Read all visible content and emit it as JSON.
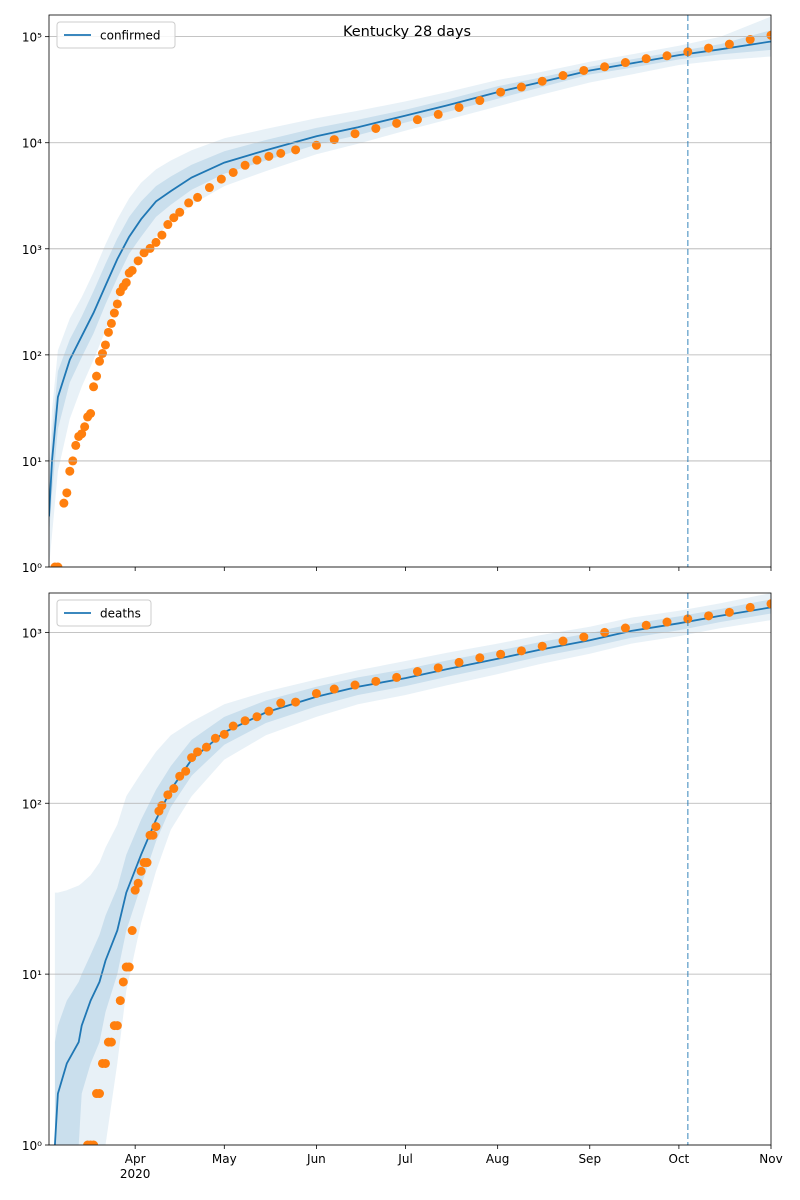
{
  "chart_data": [
    {
      "type": "line",
      "title": "Kentucky 28 days",
      "log_y": true,
      "grid": "y",
      "legend": "upper left",
      "xlim": [
        "2020-03-03",
        "2020-11-01"
      ],
      "xticks": [
        {
          "value": "2020-04-01",
          "label": "Apr"
        },
        {
          "value": "2020-05-01",
          "label": "May"
        },
        {
          "value": "2020-06-01",
          "label": "Jun"
        },
        {
          "value": "2020-07-01",
          "label": "Jul"
        },
        {
          "value": "2020-08-01",
          "label": "Aug"
        },
        {
          "value": "2020-09-01",
          "label": "Sep"
        },
        {
          "value": "2020-10-01",
          "label": "Oct"
        },
        {
          "value": "2020-11-01",
          "label": "Nov"
        }
      ],
      "ylim": [
        1,
        160000
      ],
      "yticks": [
        {
          "value": 1,
          "label": "10⁰"
        },
        {
          "value": 10,
          "label": "10¹"
        },
        {
          "value": 100,
          "label": "10²"
        },
        {
          "value": 1000,
          "label": "10³"
        },
        {
          "value": 10000,
          "label": "10⁴"
        },
        {
          "value": 100000,
          "label": "10⁵"
        }
      ],
      "vline": {
        "x": "2020-10-04",
        "color": "#1f77b4"
      },
      "series": [
        {
          "name": "confirmed",
          "color": "#1f77b4",
          "x": [
            "2020-03-03",
            "2020-03-04",
            "2020-03-06",
            "2020-03-10",
            "2020-03-14",
            "2020-03-18",
            "2020-03-22",
            "2020-03-26",
            "2020-03-30",
            "2020-04-03",
            "2020-04-08",
            "2020-04-13",
            "2020-04-20",
            "2020-05-01",
            "2020-05-15",
            "2020-06-01",
            "2020-06-15",
            "2020-07-01",
            "2020-07-15",
            "2020-08-01",
            "2020-08-15",
            "2020-09-01",
            "2020-09-15",
            "2020-10-01",
            "2020-10-15",
            "2020-11-01"
          ],
          "values": [
            3,
            10,
            40,
            90,
            150,
            250,
            450,
            800,
            1300,
            1900,
            2800,
            3500,
            4700,
            6500,
            8500,
            11500,
            14000,
            18000,
            22500,
            30000,
            37000,
            48000,
            56000,
            67000,
            76000,
            90000
          ],
          "bands": [
            {
              "opacity": 0.1,
              "upper": [
                8,
                30,
                110,
                220,
                350,
                600,
                1100,
                1900,
                3000,
                4200,
                5600,
                6800,
                8500,
                11000,
                13500,
                17000,
                20000,
                24500,
                30000,
                39000,
                46000,
                58000,
                68000,
                82000,
                100000,
                155000
              ],
              "lower": [
                1,
                2,
                8,
                25,
                50,
                90,
                170,
                320,
                550,
                850,
                1300,
                1800,
                2600,
                3900,
                5400,
                7800,
                9800,
                13000,
                16500,
                22000,
                28000,
                37000,
                44000,
                54000,
                60000,
                65000
              ]
            },
            {
              "opacity": 0.15,
              "upper": [
                5,
                18,
                70,
                140,
                230,
                400,
                720,
                1250,
                2000,
                2800,
                3900,
                4800,
                6200,
                8300,
                10600,
                13800,
                16500,
                20500,
                25500,
                34000,
                41000,
                52000,
                61000,
                73000,
                85000,
                115000
              ],
              "lower": [
                2,
                5,
                20,
                55,
                95,
                160,
                300,
                530,
                900,
                1300,
                2000,
                2600,
                3600,
                5100,
                6800,
                9600,
                11800,
                15500,
                19500,
                26000,
                33000,
                44000,
                51000,
                61000,
                68000,
                75000
              ]
            }
          ]
        },
        {
          "color": "#ff7f0e",
          "marker": "circle",
          "x": [
            "2020-03-05",
            "2020-03-06",
            "2020-03-08",
            "2020-03-09",
            "2020-03-10",
            "2020-03-11",
            "2020-03-12",
            "2020-03-13",
            "2020-03-14",
            "2020-03-15",
            "2020-03-16",
            "2020-03-17",
            "2020-03-18",
            "2020-03-19",
            "2020-03-20",
            "2020-03-21",
            "2020-03-22",
            "2020-03-23",
            "2020-03-24",
            "2020-03-25",
            "2020-03-26",
            "2020-03-27",
            "2020-03-28",
            "2020-03-29",
            "2020-03-30",
            "2020-03-31",
            "2020-04-02",
            "2020-04-04",
            "2020-04-06",
            "2020-04-08",
            "2020-04-10",
            "2020-04-12",
            "2020-04-14",
            "2020-04-16",
            "2020-04-19",
            "2020-04-22",
            "2020-04-26",
            "2020-04-30",
            "2020-05-04",
            "2020-05-08",
            "2020-05-12",
            "2020-05-16",
            "2020-05-20",
            "2020-05-25",
            "2020-06-01",
            "2020-06-07",
            "2020-06-14",
            "2020-06-21",
            "2020-06-28",
            "2020-07-05",
            "2020-07-12",
            "2020-07-19",
            "2020-07-26",
            "2020-08-02",
            "2020-08-09",
            "2020-08-16",
            "2020-08-23",
            "2020-08-30",
            "2020-09-06",
            "2020-09-13",
            "2020-09-20",
            "2020-09-27",
            "2020-10-04",
            "2020-10-11",
            "2020-10-18",
            "2020-10-25",
            "2020-11-01"
          ],
          "values": [
            1,
            1,
            4,
            5,
            8,
            10,
            14,
            17,
            18,
            21,
            26,
            28,
            50,
            63,
            87,
            103,
            124,
            163,
            198,
            248,
            302,
            394,
            439,
            480,
            591,
            625,
            770,
            917,
            1008,
            1149,
            1346,
            1693,
            1963,
            2210,
            2707,
            3050,
            3779,
            4539,
            5245,
            6128,
            6853,
            7444,
            7935,
            8571,
            9464,
            10705,
            12166,
            13630,
            15232,
            16500,
            18500,
            21500,
            25000,
            30000,
            33500,
            38000,
            43000,
            48000,
            52000,
            57000,
            62000,
            66000,
            72000,
            78000,
            85000,
            94000,
            103000
          ]
        }
      ]
    },
    {
      "type": "line",
      "log_y": true,
      "grid": "y",
      "legend": "upper left",
      "xlim": [
        "2020-03-03",
        "2020-11-01"
      ],
      "xticks": [
        {
          "value": "2020-04-01",
          "label": "Apr"
        },
        {
          "value": "2020-05-01",
          "label": "May"
        },
        {
          "value": "2020-06-01",
          "label": "Jun"
        },
        {
          "value": "2020-07-01",
          "label": "Jul"
        },
        {
          "value": "2020-08-01",
          "label": "Aug"
        },
        {
          "value": "2020-09-01",
          "label": "Sep"
        },
        {
          "value": "2020-10-01",
          "label": "Oct"
        },
        {
          "value": "2020-11-01",
          "label": "Nov"
        }
      ],
      "xtick_year": {
        "value": "2020-04-01",
        "label": "2020"
      },
      "ylim": [
        1,
        1700
      ],
      "yticks": [
        {
          "value": 1,
          "label": "10⁰"
        },
        {
          "value": 10,
          "label": "10¹"
        },
        {
          "value": 100,
          "label": "10²"
        },
        {
          "value": 1000,
          "label": "10³"
        }
      ],
      "vline": {
        "x": "2020-10-04",
        "color": "#1f77b4"
      },
      "series": [
        {
          "name": "deaths",
          "color": "#1f77b4",
          "x": [
            "2020-03-05",
            "2020-03-06",
            "2020-03-09",
            "2020-03-13",
            "2020-03-14",
            "2020-03-17",
            "2020-03-20",
            "2020-03-22",
            "2020-03-26",
            "2020-03-29",
            "2020-04-03",
            "2020-04-08",
            "2020-04-13",
            "2020-04-20",
            "2020-05-01",
            "2020-05-15",
            "2020-06-01",
            "2020-06-15",
            "2020-07-01",
            "2020-07-15",
            "2020-08-01",
            "2020-08-15",
            "2020-09-01",
            "2020-09-15",
            "2020-10-01",
            "2020-10-15",
            "2020-11-01"
          ],
          "values": [
            1,
            2,
            3,
            4,
            5,
            7,
            9,
            12,
            18,
            30,
            50,
            80,
            120,
            180,
            260,
            340,
            420,
            480,
            540,
            610,
            700,
            790,
            900,
            1020,
            1130,
            1250,
            1400
          ],
          "bands": [
            {
              "opacity": 0.1,
              "upper": [
                30,
                30,
                31,
                33,
                34,
                38,
                45,
                55,
                75,
                110,
                150,
                200,
                250,
                300,
                380,
                450,
                530,
                600,
                680,
                760,
                860,
                960,
                1080,
                1220,
                1340,
                1480,
                1700
              ],
              "lower": [
                1,
                1,
                1,
                1,
                1,
                1,
                1,
                1,
                3,
                8,
                20,
                40,
                70,
                110,
                180,
                250,
                320,
                380,
                430,
                490,
                570,
                650,
                750,
                860,
                950,
                1060,
                1180
              ]
            },
            {
              "opacity": 0.15,
              "upper": [
                4,
                5,
                7,
                9,
                10,
                13,
                17,
                22,
                32,
                50,
                80,
                120,
                165,
                235,
                320,
                400,
                480,
                545,
                610,
                685,
                780,
                875,
                990,
                1120,
                1240,
                1370,
                1560
              ],
              "lower": [
                1,
                1,
                1,
                1,
                2,
                3,
                4,
                6,
                10,
                18,
                33,
                60,
                95,
                145,
                220,
                295,
                370,
                430,
                485,
                550,
                635,
                720,
                820,
                930,
                1030,
                1150,
                1290
              ]
            }
          ]
        },
        {
          "color": "#ff7f0e",
          "marker": "circle",
          "x": [
            "2020-03-16",
            "2020-03-17",
            "2020-03-18",
            "2020-03-19",
            "2020-03-20",
            "2020-03-21",
            "2020-03-22",
            "2020-03-23",
            "2020-03-24",
            "2020-03-25",
            "2020-03-26",
            "2020-03-27",
            "2020-03-28",
            "2020-03-29",
            "2020-03-30",
            "2020-03-31",
            "2020-04-01",
            "2020-04-02",
            "2020-04-03",
            "2020-04-04",
            "2020-04-05",
            "2020-04-06",
            "2020-04-07",
            "2020-04-08",
            "2020-04-09",
            "2020-04-10",
            "2020-04-12",
            "2020-04-14",
            "2020-04-16",
            "2020-04-18",
            "2020-04-20",
            "2020-04-22",
            "2020-04-25",
            "2020-04-28",
            "2020-05-01",
            "2020-05-04",
            "2020-05-08",
            "2020-05-12",
            "2020-05-16",
            "2020-05-20",
            "2020-05-25",
            "2020-06-01",
            "2020-06-07",
            "2020-06-14",
            "2020-06-21",
            "2020-06-28",
            "2020-07-05",
            "2020-07-12",
            "2020-07-19",
            "2020-07-26",
            "2020-08-02",
            "2020-08-09",
            "2020-08-16",
            "2020-08-23",
            "2020-08-30",
            "2020-09-06",
            "2020-09-13",
            "2020-09-20",
            "2020-09-27",
            "2020-10-04",
            "2020-10-11",
            "2020-10-18",
            "2020-10-25",
            "2020-11-01"
          ],
          "values": [
            1,
            1,
            1,
            2,
            2,
            3,
            3,
            4,
            4,
            5,
            5,
            7,
            9,
            11,
            11,
            18,
            31,
            34,
            40,
            45,
            45,
            65,
            65,
            73,
            90,
            97,
            112,
            122,
            144,
            154,
            185,
            200,
            213,
            240,
            253,
            283,
            304,
            321,
            346,
            386,
            391,
            439,
            466,
            492,
            517,
            545,
            590,
            620,
            667,
            710,
            745,
            780,
            830,
            890,
            940,
            1000,
            1060,
            1100,
            1150,
            1200,
            1250,
            1310,
            1400,
            1470
          ]
        }
      ]
    }
  ]
}
